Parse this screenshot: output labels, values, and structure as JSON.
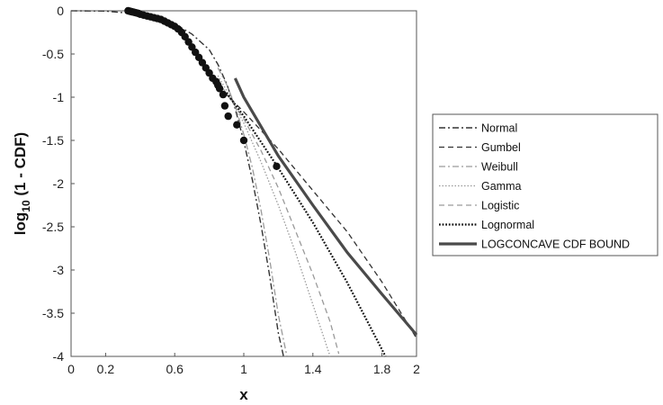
{
  "chart_data": {
    "type": "line",
    "xlabel": "x",
    "ylabel_main": "log",
    "ylabel_sub": "10",
    "ylabel_rest": " (1 - CDF)",
    "xlim": [
      0,
      2
    ],
    "ylim": [
      -4,
      0
    ],
    "x_ticks": [
      0,
      0.2,
      0.6,
      1,
      1.4,
      1.8,
      2
    ],
    "x_tick_labels": [
      "0",
      "0.2",
      "0.6",
      "1",
      "1.4",
      "1.8",
      "2"
    ],
    "y_ticks": [
      0,
      -0.5,
      -1,
      -1.5,
      -2,
      -2.5,
      -3,
      -3.5,
      -4
    ],
    "y_tick_labels": [
      "0",
      "-0.5",
      "-1",
      "-1.5",
      "-2",
      "-2.5",
      "-3",
      "-3.5",
      "-4"
    ],
    "grid": false,
    "legend_position": "right",
    "empirical_points": {
      "x": [
        0.33,
        0.34,
        0.35,
        0.36,
        0.37,
        0.38,
        0.39,
        0.4,
        0.42,
        0.44,
        0.46,
        0.48,
        0.5,
        0.52,
        0.54,
        0.56,
        0.58,
        0.6,
        0.62,
        0.64,
        0.66,
        0.68,
        0.7,
        0.72,
        0.74,
        0.76,
        0.78,
        0.8,
        0.82,
        0.84,
        0.85,
        0.86,
        0.88,
        0.89,
        0.91,
        0.96,
        1.0,
        1.19
      ],
      "y": [
        0.0,
        -0.005,
        -0.01,
        -0.015,
        -0.02,
        -0.025,
        -0.03,
        -0.04,
        -0.05,
        -0.06,
        -0.07,
        -0.08,
        -0.09,
        -0.1,
        -0.12,
        -0.14,
        -0.16,
        -0.18,
        -0.21,
        -0.25,
        -0.3,
        -0.36,
        -0.42,
        -0.48,
        -0.54,
        -0.6,
        -0.66,
        -0.72,
        -0.78,
        -0.82,
        -0.86,
        -0.9,
        -0.97,
        -1.1,
        -1.22,
        -1.32,
        -1.5,
        -1.8
      ],
      "color": "#111111"
    },
    "series": [
      {
        "name": "Normal",
        "dash": "7,3,2,3",
        "color": "#333333",
        "width": 1.4,
        "x": [
          0.0,
          0.2,
          0.4,
          0.5,
          0.6,
          0.7,
          0.8,
          0.85,
          0.9,
          0.95,
          1.0,
          1.05,
          1.1,
          1.15,
          1.2,
          1.23
        ],
        "y": [
          0.0,
          -0.003,
          -0.04,
          -0.08,
          -0.15,
          -0.27,
          -0.45,
          -0.62,
          -0.84,
          -1.13,
          -1.51,
          -1.96,
          -2.48,
          -3.07,
          -3.73,
          -4.0
        ]
      },
      {
        "name": "Gumbel",
        "dash": "6,4",
        "color": "#333333",
        "width": 1.3,
        "x": [
          0.85,
          1.0,
          1.2,
          1.4,
          1.6,
          1.8,
          2.0
        ],
        "y": [
          -0.87,
          -1.17,
          -1.6,
          -2.08,
          -2.56,
          -3.14,
          -3.79
        ]
      },
      {
        "name": "Weibull",
        "dash": "7,3,2,3",
        "color": "#9a9a9a",
        "width": 1.3,
        "x": [
          0.85,
          0.9,
          0.95,
          1.0,
          1.05,
          1.1,
          1.15,
          1.2,
          1.25
        ],
        "y": [
          -0.66,
          -0.85,
          -1.1,
          -1.43,
          -1.82,
          -2.31,
          -2.88,
          -3.52,
          -4.0
        ]
      },
      {
        "name": "Gamma",
        "dash": "1.5,2",
        "color": "#9a9a9a",
        "width": 1.3,
        "x": [
          0.85,
          0.9,
          0.95,
          1.0,
          1.1,
          1.2,
          1.3,
          1.4,
          1.5
        ],
        "y": [
          -0.75,
          -0.92,
          -1.1,
          -1.3,
          -1.75,
          -2.25,
          -2.8,
          -3.4,
          -4.0
        ]
      },
      {
        "name": "Logistic",
        "dash": "6,4",
        "color": "#9a9a9a",
        "width": 1.3,
        "x": [
          0.88,
          1.0,
          1.1,
          1.2,
          1.3,
          1.4,
          1.5,
          1.55
        ],
        "y": [
          -0.9,
          -1.25,
          -1.62,
          -2.05,
          -2.55,
          -3.05,
          -3.6,
          -3.97
        ]
      },
      {
        "name": "Lognormal",
        "dash": "1.8,1.8",
        "color": "#111111",
        "width": 2.2,
        "x": [
          0.9,
          1.0,
          1.2,
          1.4,
          1.6,
          1.8,
          1.82
        ],
        "y": [
          -0.95,
          -1.22,
          -1.82,
          -2.45,
          -3.15,
          -3.92,
          -4.0
        ]
      },
      {
        "name": "LOGCONCAVE CDF BOUND",
        "dash": "",
        "color": "#4a4a4a",
        "width": 3.2,
        "x": [
          0.95,
          1.0,
          1.2,
          1.4,
          1.6,
          1.8,
          2.0
        ],
        "y": [
          -0.78,
          -1.0,
          -1.68,
          -2.25,
          -2.8,
          -3.28,
          -3.75
        ]
      }
    ]
  }
}
